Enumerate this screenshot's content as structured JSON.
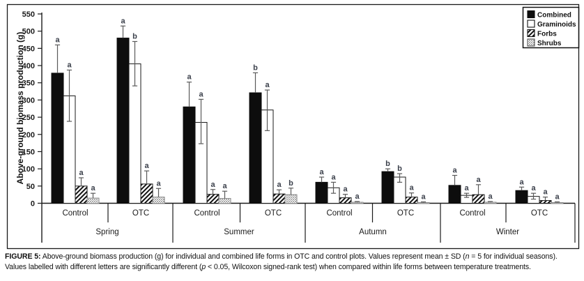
{
  "chart_data": {
    "type": "bar",
    "title": "",
    "ylabel": "Above-ground biomass production (g)",
    "ylim": [
      0,
      550
    ],
    "yticks": [
      0,
      50,
      100,
      150,
      200,
      250,
      300,
      350,
      400,
      450,
      500,
      550
    ],
    "grid": false,
    "legend_position": "top-right",
    "series_names": [
      "Combined",
      "Graminoids",
      "Forbs",
      "Shrubs"
    ],
    "seasons": [
      "Spring",
      "Summer",
      "Autumn",
      "Winter"
    ],
    "groups": [
      {
        "season": "Spring",
        "treatment": "Control",
        "means": [
          378,
          312,
          50,
          15
        ],
        "err_up": [
          460,
          387,
          74,
          29
        ],
        "err_down": [
          null,
          238,
          null,
          null
        ],
        "letters": [
          "a",
          "a",
          "a",
          "a"
        ]
      },
      {
        "season": "Spring",
        "treatment": "OTC",
        "means": [
          480,
          405,
          56,
          18
        ],
        "err_up": [
          515,
          470,
          94,
          43
        ],
        "err_down": [
          null,
          341,
          null,
          null
        ],
        "letters": [
          "a",
          "b",
          "a",
          "a"
        ]
      },
      {
        "season": "Summer",
        "treatment": "Control",
        "means": [
          280,
          235,
          26,
          14
        ],
        "err_up": [
          352,
          302,
          40,
          35
        ],
        "err_down": [
          null,
          173,
          null,
          null
        ],
        "letters": [
          "a",
          "a",
          "a",
          "a"
        ]
      },
      {
        "season": "Summer",
        "treatment": "OTC",
        "means": [
          321,
          271,
          27,
          25
        ],
        "err_up": [
          379,
          329,
          39,
          44
        ],
        "err_down": [
          null,
          211,
          null,
          null
        ],
        "letters": [
          "b",
          "a",
          "a",
          "b"
        ]
      },
      {
        "season": "Autumn",
        "treatment": "Control",
        "means": [
          61,
          45,
          16,
          3
        ],
        "err_up": [
          76,
          61,
          26,
          5
        ],
        "err_down": [
          null,
          29,
          null,
          null
        ],
        "letters": [
          "a",
          "a",
          "a",
          "a"
        ]
      },
      {
        "season": "Autumn",
        "treatment": "OTC",
        "means": [
          92,
          76,
          18,
          2
        ],
        "err_up": [
          100,
          86,
          30,
          4
        ],
        "err_down": [
          null,
          61,
          null,
          null
        ],
        "letters": [
          "b",
          "b",
          "a",
          "a"
        ]
      },
      {
        "season": "Winter",
        "treatment": "Control",
        "means": [
          52,
          23,
          25,
          3
        ],
        "err_up": [
          81,
          29,
          54,
          5
        ],
        "err_down": [
          null,
          17,
          null,
          null
        ],
        "letters": [
          "a",
          "a",
          "a",
          "a"
        ]
      },
      {
        "season": "Winter",
        "treatment": "OTC",
        "means": [
          37,
          20,
          8,
          2
        ],
        "err_up": [
          47,
          29,
          18,
          4
        ],
        "err_down": [
          null,
          12,
          null,
          null
        ],
        "letters": [
          "a",
          "a",
          "a",
          "a"
        ]
      }
    ],
    "legend": [
      {
        "label": "Combined",
        "pattern": "solid"
      },
      {
        "label": "Graminoids",
        "pattern": "open"
      },
      {
        "label": "Forbs",
        "pattern": "hatch"
      },
      {
        "label": "Shrubs",
        "pattern": "dots"
      }
    ],
    "colors": {
      "bar_black": "#0d0d0d",
      "bar_white": "#ffffff",
      "error_bar": "#5a5a5a",
      "letter": "#3a3f4a",
      "axis": "#1a1a1a"
    }
  },
  "caption": {
    "label": "FIGURE 5:",
    "text1_pre": " Above-ground biomass production (g) for individual and combined life forms in OTC and control plots. Values represent mean ± SD (",
    "n_var": "n",
    "text1_post": " = 5 for individual seasons).",
    "text2_pre": "Values labelled with different letters are significantly different (",
    "p_var": "p",
    "text2_post": " < 0.05, Wilcoxon signed-rank test) when compared within life forms between temperature treatments."
  }
}
